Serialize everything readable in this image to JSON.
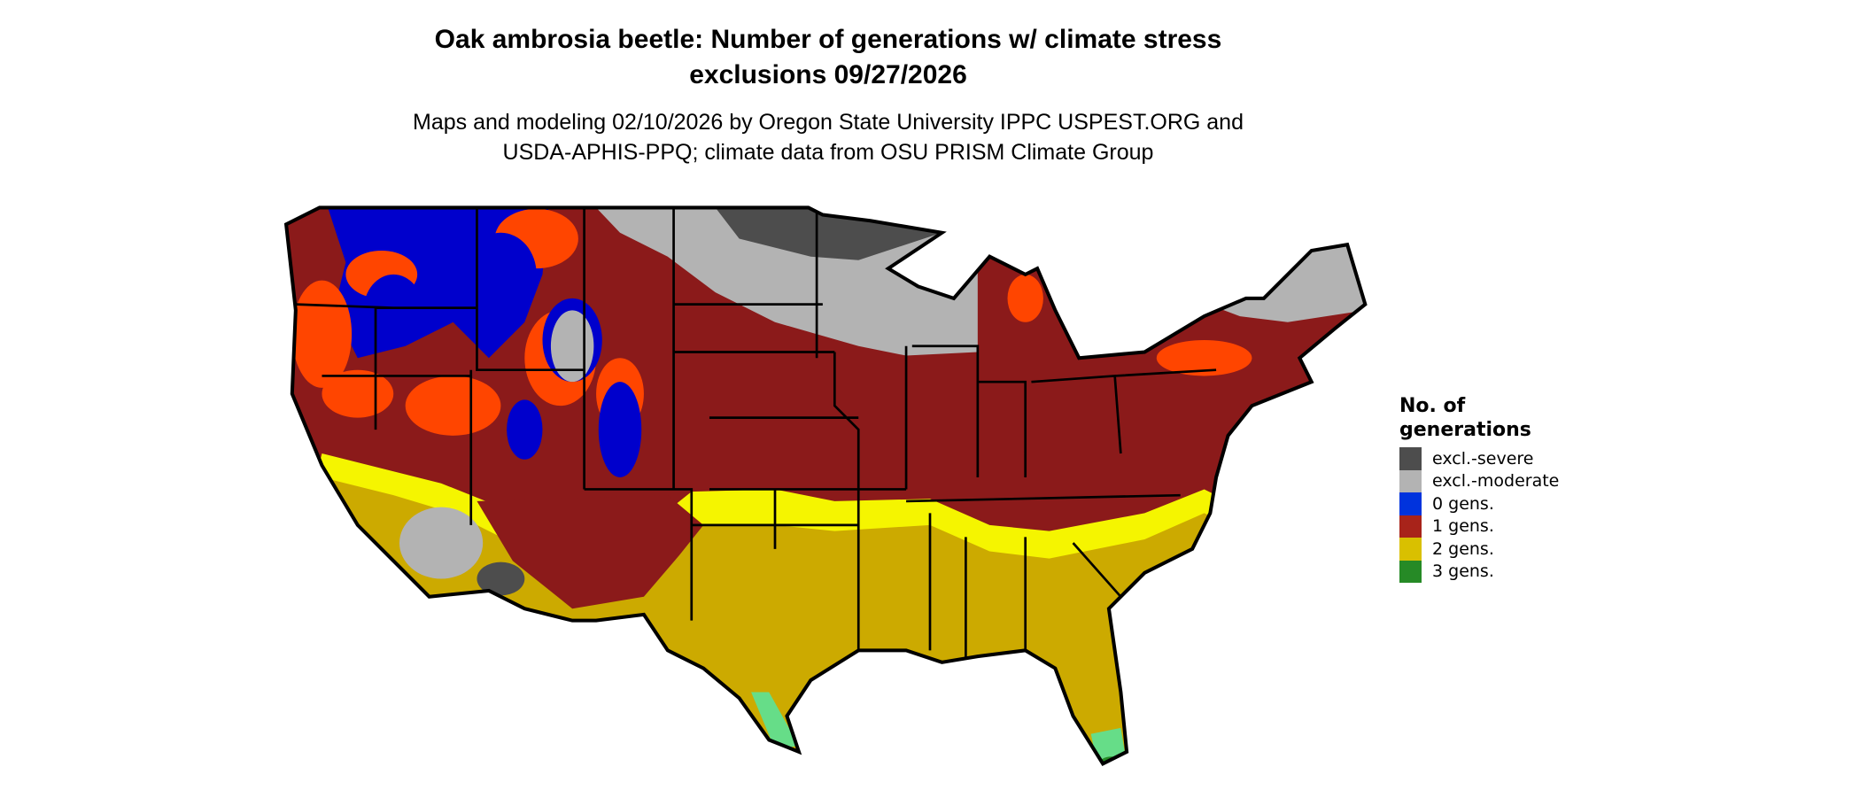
{
  "title": {
    "line1": "Oak ambrosia beetle: Number of generations w/ climate stress",
    "line2": "exclusions 09/27/2026"
  },
  "subtitle": {
    "line1": "Maps and modeling 02/10/2026 by Oregon State University IPPC USPEST.ORG and",
    "line2": "USDA-APHIS-PPQ; climate data from OSU PRISM Climate Group"
  },
  "legend": {
    "title": "No. of generations",
    "items": [
      {
        "label": "excl.-severe",
        "color": "#4d4d4d"
      },
      {
        "label": "excl.-moderate",
        "color": "#b3b3b3"
      },
      {
        "label": "0 gens.",
        "color": "#0033dd"
      },
      {
        "label": "1 gens.",
        "color": "#a8231a"
      },
      {
        "label": "2 gens.",
        "color": "#d9c000"
      },
      {
        "label": "3 gens.",
        "color": "#268a26"
      }
    ]
  },
  "map_colors": {
    "one_gen": "#8b1a1a",
    "two_gen": "#ccaa00",
    "bright_yellow": "#f5f500",
    "orange": "#ff4500",
    "blue": "#0000cc",
    "gray": "#b3b3b3",
    "dark_gray": "#4d4d4d",
    "green_light": "#66dd88",
    "green": "#268a26"
  }
}
